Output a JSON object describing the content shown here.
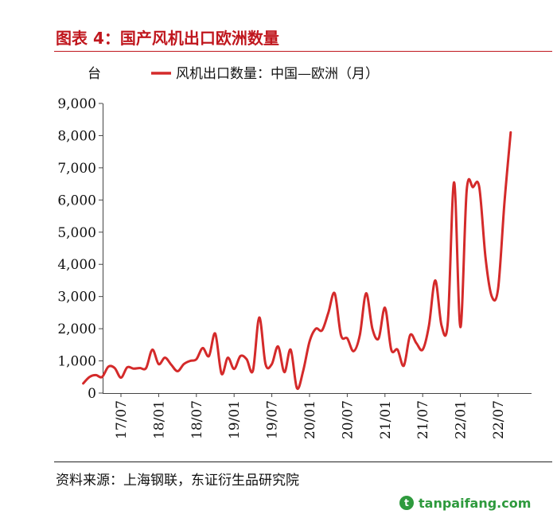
{
  "header": {
    "title": "图表 4：国产风机出口欧洲数量"
  },
  "footer": {
    "source": "资料来源：上海钢联，东证衍生品研究院",
    "watermark": "tanpaifang.com"
  },
  "colors": {
    "accent": "#c0171e",
    "line": "#d42a2a",
    "watermark": "#2e9a3d"
  },
  "chart_data": {
    "type": "line",
    "unit_label": "台",
    "legend": {
      "label": "风机出口数量：中国—欧洲（月）",
      "placement": "top"
    },
    "ylim": [
      0,
      9000
    ],
    "y_ticks": [
      "9,000",
      "8,000",
      "7,000",
      "6,000",
      "5,000",
      "4,000",
      "3,000",
      "2,000",
      "1,000",
      "0"
    ],
    "x_tick_labels": [
      "17/07",
      "18/01",
      "18/07",
      "19/01",
      "19/07",
      "20/01",
      "20/07",
      "21/01",
      "21/07",
      "22/01",
      "22/07"
    ],
    "x_start": "17/01",
    "grid": false,
    "series": [
      {
        "name": "风机出口数量：中国—欧洲（月）",
        "values": [
          300,
          500,
          560,
          500,
          820,
          780,
          480,
          800,
          760,
          780,
          780,
          1350,
          900,
          1100,
          880,
          680,
          900,
          1000,
          1050,
          1400,
          1150,
          1850,
          600,
          1100,
          750,
          1150,
          1050,
          700,
          2350,
          900,
          900,
          1450,
          650,
          1350,
          150,
          700,
          1600,
          2000,
          1950,
          2500,
          3100,
          1800,
          1700,
          1300,
          1800,
          3100,
          2000,
          1700,
          2650,
          1350,
          1350,
          850,
          1800,
          1550,
          1350,
          2100,
          3500,
          2100,
          2200,
          6550,
          2050,
          6300,
          6400,
          6400,
          4200,
          3000,
          3250,
          5900,
          8100
        ]
      }
    ]
  }
}
